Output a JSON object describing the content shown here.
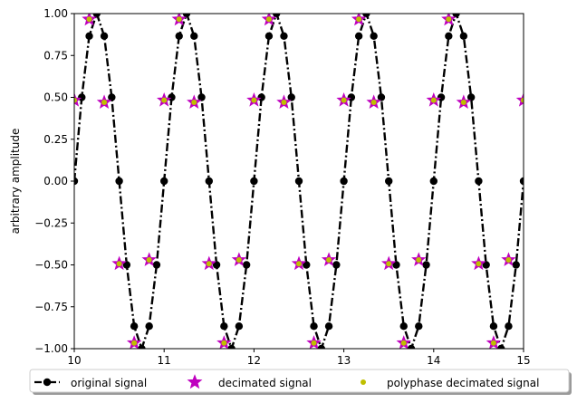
{
  "chart_data": {
    "type": "line",
    "title": "",
    "xlabel": "",
    "ylabel": "arbitrary amplitude",
    "xlim": [
      10,
      15
    ],
    "ylim": [
      -1.0,
      1.0
    ],
    "x_ticks": [
      "10",
      "11",
      "12",
      "13",
      "14",
      "15"
    ],
    "y_ticks": [
      "−1.00",
      "−0.75",
      "−0.50",
      "−0.25",
      "0.00",
      "0.25",
      "0.50",
      "0.75",
      "1.00"
    ],
    "x_tick_values": [
      10,
      11,
      12,
      13,
      14,
      15
    ],
    "y_tick_values": [
      -1.0,
      -0.75,
      -0.5,
      -0.25,
      0.0,
      0.25,
      0.5,
      0.75,
      1.0
    ],
    "grid": false,
    "legend": {
      "placement": "below plot, horizontal, shadowed frame",
      "entries": [
        "original signal",
        "decimated signal",
        "polyphase decimated signal"
      ]
    },
    "series": [
      {
        "name": "original signal",
        "style": "dash-dot line with circle markers",
        "color": "#000000",
        "x": [
          10.0,
          10.0833,
          10.1667,
          10.25,
          10.3333,
          10.4167,
          10.5,
          10.5833,
          10.6667,
          10.75,
          10.8333,
          10.9167,
          11.0,
          11.0833,
          11.1667,
          11.25,
          11.3333,
          11.4167,
          11.5,
          11.5833,
          11.6667,
          11.75,
          11.8333,
          11.9167,
          12.0,
          12.0833,
          12.1667,
          12.25,
          12.3333,
          12.4167,
          12.5,
          12.5833,
          12.6667,
          12.75,
          12.8333,
          12.9167,
          13.0,
          13.0833,
          13.1667,
          13.25,
          13.3333,
          13.4167,
          13.5,
          13.5833,
          13.6667,
          13.75,
          13.8333,
          13.9167,
          14.0,
          14.0833,
          14.1667,
          14.25,
          14.3333,
          14.4167,
          14.5,
          14.5833,
          14.6667,
          14.75,
          14.8333,
          14.9167,
          15.0
        ],
        "y": [
          0.0,
          0.5,
          0.866,
          1.0,
          0.866,
          0.5,
          0.0,
          -0.5,
          -0.866,
          -1.0,
          -0.866,
          -0.5,
          0.0,
          0.5,
          0.866,
          1.0,
          0.866,
          0.5,
          0.0,
          -0.5,
          -0.866,
          -1.0,
          -0.866,
          -0.5,
          0.0,
          0.5,
          0.866,
          1.0,
          0.866,
          0.5,
          0.0,
          -0.5,
          -0.866,
          -1.0,
          -0.866,
          -0.5,
          0.0,
          0.5,
          0.866,
          1.0,
          0.866,
          0.5,
          0.0,
          -0.5,
          -0.866,
          -1.0,
          -0.866,
          -0.5,
          0.0,
          0.5,
          0.866,
          1.0,
          0.866,
          0.5,
          0.0,
          -0.5,
          -0.866,
          -1.0,
          -0.866,
          -0.5,
          0.0
        ]
      },
      {
        "name": "decimated signal",
        "style": "star markers, magenta",
        "color": "#bf00bf",
        "x": [
          10.0,
          10.1667,
          10.3333,
          10.5,
          10.6667,
          10.8333,
          11.0,
          11.1667,
          11.3333,
          11.5,
          11.6667,
          11.8333,
          12.0,
          12.1667,
          12.3333,
          12.5,
          12.6667,
          12.8333,
          13.0,
          13.1667,
          13.3333,
          13.5,
          13.6667,
          13.8333,
          14.0,
          14.1667,
          14.3333,
          14.5,
          14.6667,
          14.8333,
          15.0
        ],
        "y": [
          0.483,
          0.966,
          0.47,
          -0.493,
          -0.966,
          -0.47,
          0.483,
          0.966,
          0.47,
          -0.493,
          -0.966,
          -0.47,
          0.483,
          0.966,
          0.47,
          -0.493,
          -0.966,
          -0.47,
          0.483,
          0.966,
          0.47,
          -0.493,
          -0.966,
          -0.47,
          0.483,
          0.966,
          0.47,
          -0.493,
          -0.966,
          -0.47,
          0.483
        ]
      },
      {
        "name": "polyphase decimated signal",
        "style": "small circle markers, olive",
        "color": "#bfbf00",
        "x": [
          10.0,
          10.1667,
          10.3333,
          10.5,
          10.6667,
          10.8333,
          11.0,
          11.1667,
          11.3333,
          11.5,
          11.6667,
          11.8333,
          12.0,
          12.1667,
          12.3333,
          12.5,
          12.6667,
          12.8333,
          13.0,
          13.1667,
          13.3333,
          13.5,
          13.6667,
          13.8333,
          14.0,
          14.1667,
          14.3333,
          14.5,
          14.6667,
          14.8333,
          15.0
        ],
        "y": [
          0.483,
          0.966,
          0.47,
          -0.493,
          -0.966,
          -0.47,
          0.483,
          0.966,
          0.47,
          -0.493,
          -0.966,
          -0.47,
          0.483,
          0.966,
          0.47,
          -0.493,
          -0.966,
          -0.47,
          0.483,
          0.966,
          0.47,
          -0.493,
          -0.966,
          -0.47,
          0.483,
          0.966,
          0.47,
          -0.493,
          -0.966,
          -0.47,
          0.483
        ]
      }
    ]
  }
}
